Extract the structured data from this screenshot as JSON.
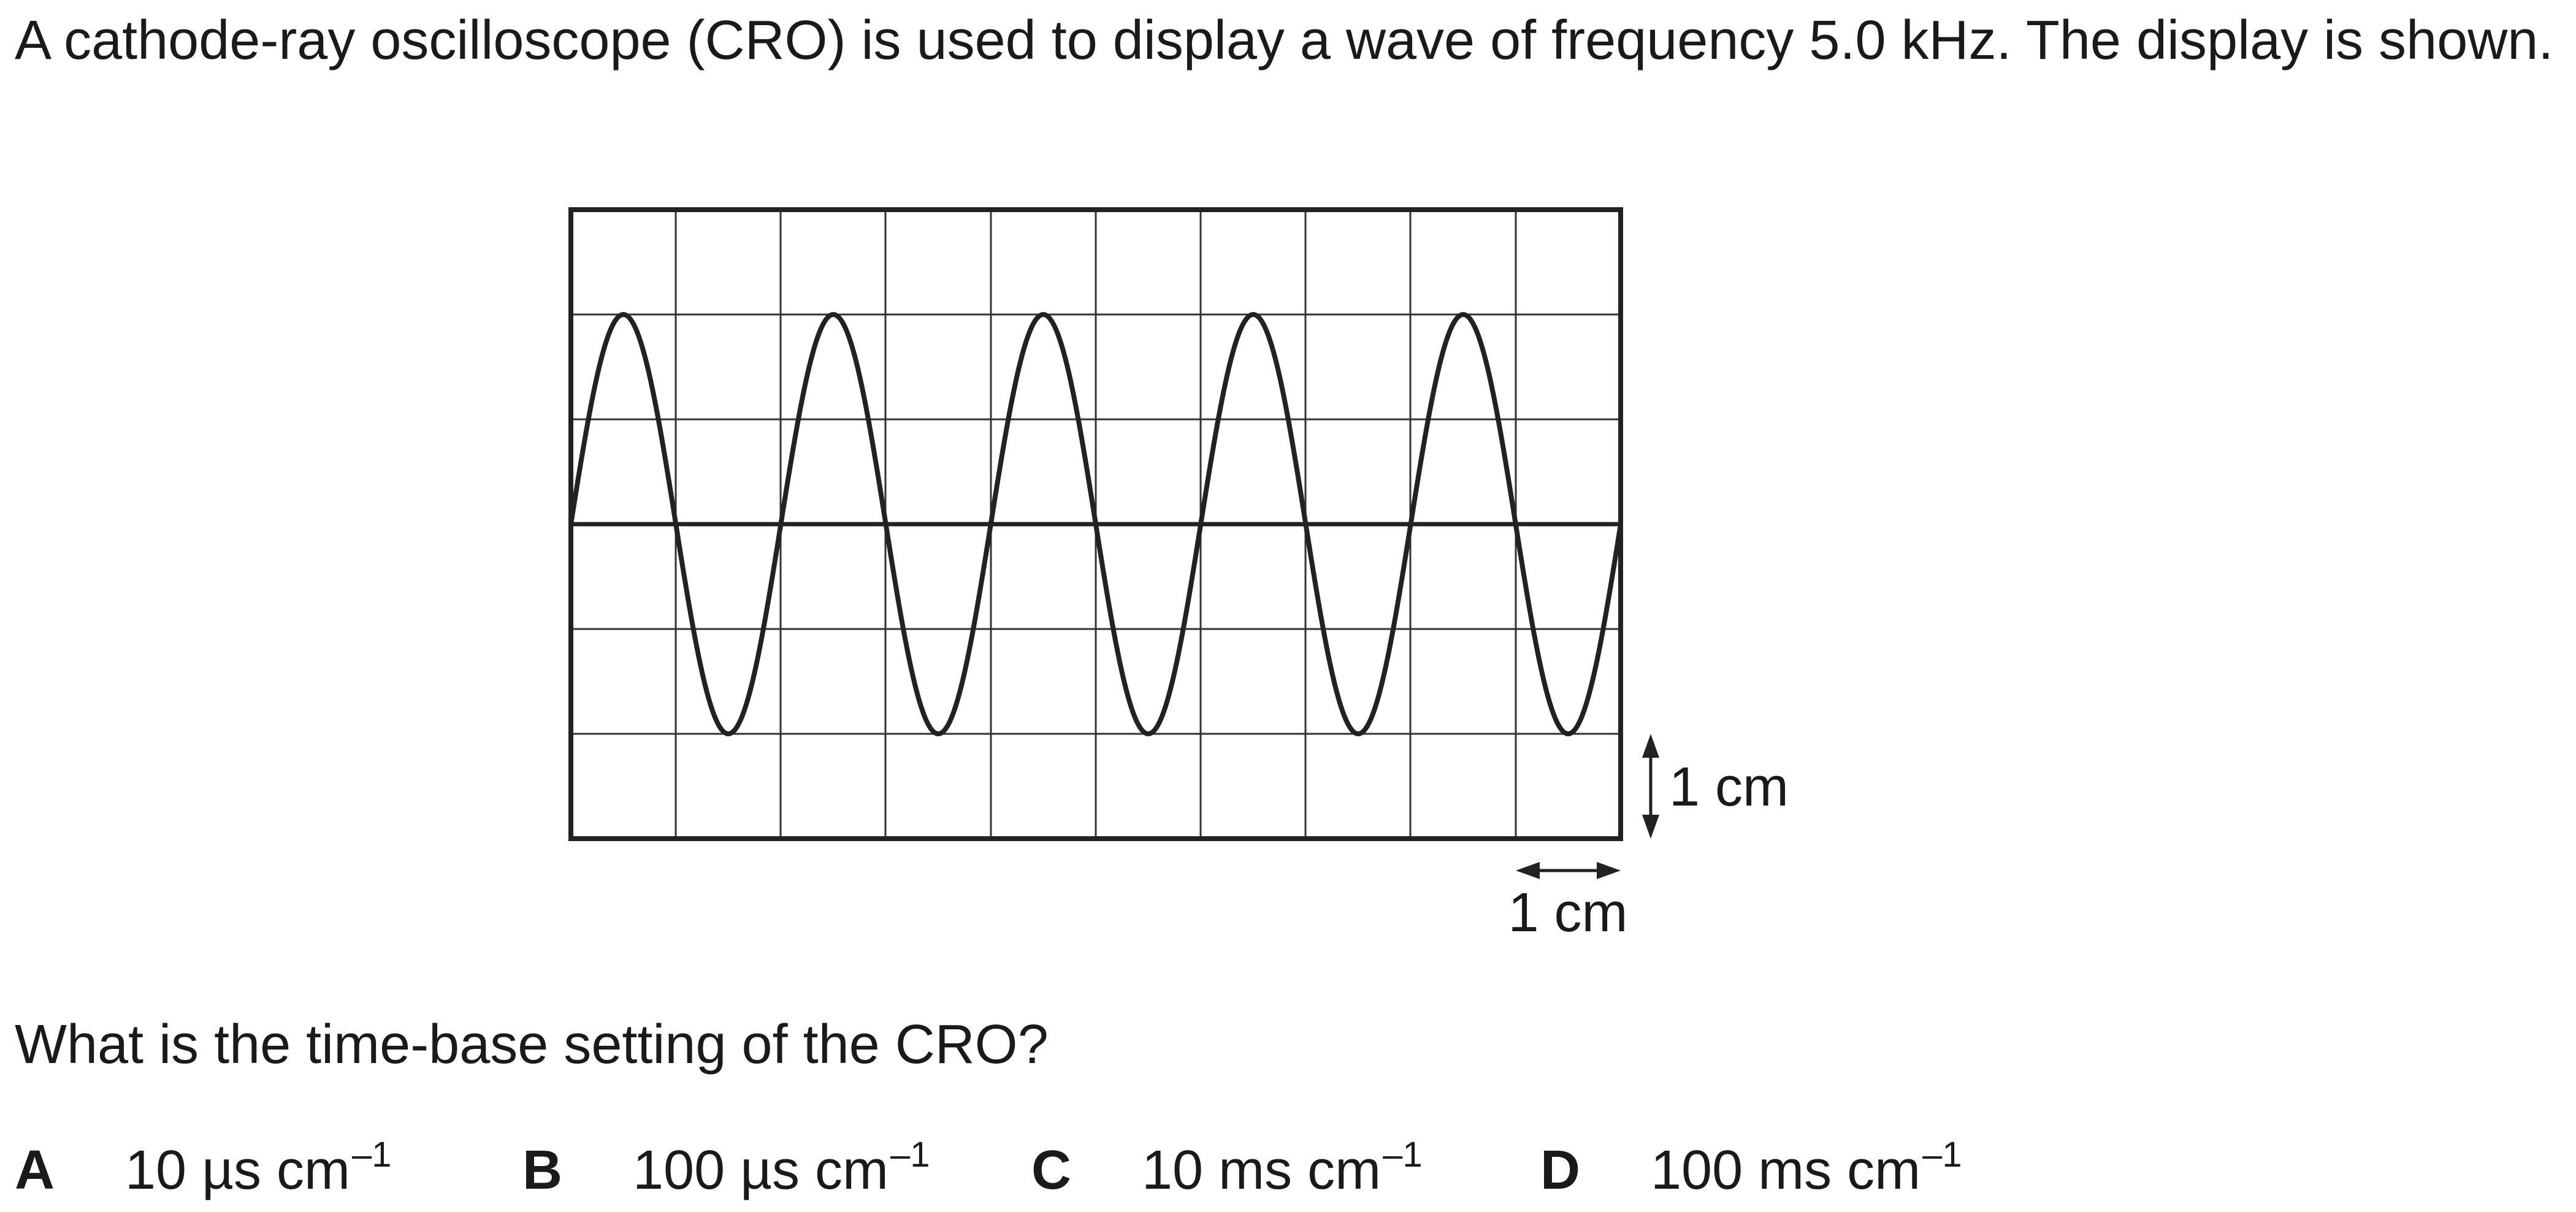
{
  "question": {
    "stem": "A cathode-ray oscilloscope (CRO) is used to display a wave of frequency 5.0 kHz. The display is shown.",
    "prompt": "What is the time-base setting of the CRO?"
  },
  "figure": {
    "vertical_scale_label": "1 cm",
    "horizontal_scale_label": "1 cm"
  },
  "options": [
    {
      "letter": "A",
      "value": "10 µs cm",
      "exponent": "–1"
    },
    {
      "letter": "B",
      "value": "100 µs cm",
      "exponent": "–1"
    },
    {
      "letter": "C",
      "value": "10 ms cm",
      "exponent": "–1"
    },
    {
      "letter": "D",
      "value": "100 ms cm",
      "exponent": "–1"
    }
  ]
}
